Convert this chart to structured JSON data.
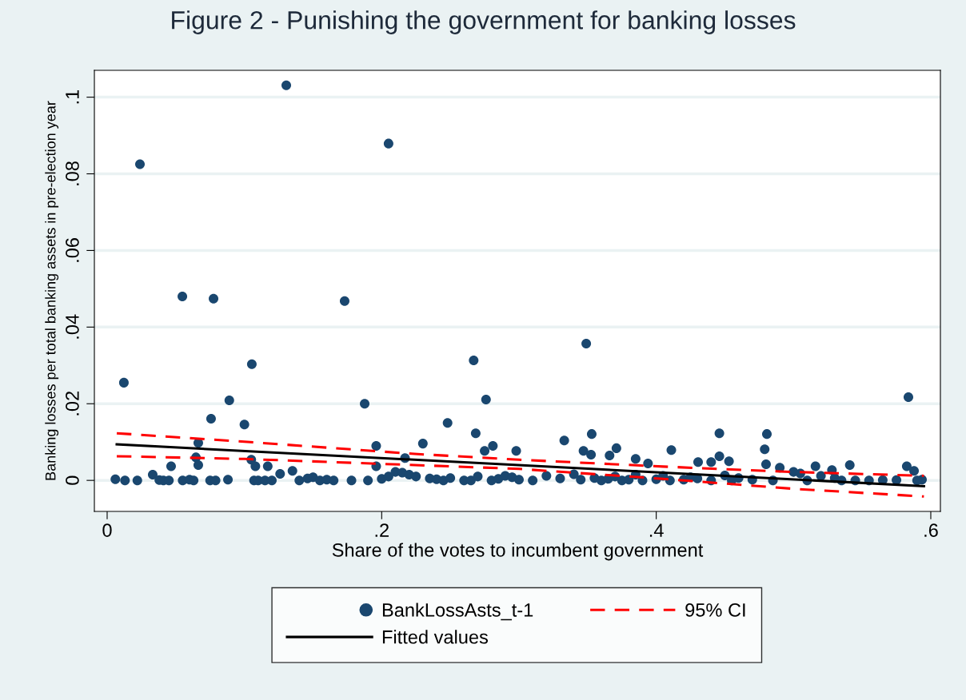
{
  "chart_data": {
    "type": "scatter",
    "title": "Figure 2 - Punishing the government for banking losses",
    "xlabel": "Share of the votes to incumbent government",
    "ylabel": "Banking losses per total banking assets in pre-election year",
    "xlim": [
      -0.0093,
      0.607
    ],
    "ylim": [
      -0.0081,
      0.107
    ],
    "xticks": [
      0,
      {
        "value": 0.2,
        "label": ".2"
      },
      {
        "value": 0.4,
        "label": ".4"
      },
      {
        "value": 0.6,
        "label": ".6"
      }
    ],
    "yticks": [
      0,
      {
        "value": 0.02,
        "label": ".02"
      },
      {
        "value": 0.04,
        "label": ".04"
      },
      {
        "value": 0.06,
        "label": ".06"
      },
      {
        "value": 0.08,
        "label": ".08"
      },
      {
        "value": 0.1,
        "label": ".1"
      }
    ],
    "grid": "y",
    "legend": "bottom",
    "series": [
      {
        "name": "BankLossAsts_t-1",
        "marker": "circle",
        "color": "#1a476f",
        "x": [
          0.1305,
          0.205,
          0.0239,
          0.0548,
          0.0775,
          0.173,
          0.349,
          0.0122,
          0.1054,
          0.267,
          0.276,
          0.089,
          0.1876,
          0.0757,
          0.1,
          0.248,
          0.5837,
          0.2685,
          0.353,
          0.23,
          0.275,
          0.281,
          0.298,
          0.333,
          0.347,
          0.3525,
          0.366,
          0.371,
          0.385,
          0.394,
          0.411,
          0.4305,
          0.44,
          0.446,
          0.446,
          0.453,
          0.479,
          0.4806,
          0.48,
          0.49,
          0.516,
          0.528,
          0.541,
          0.5825,
          0.5878,
          0.5936,
          0.0664,
          0.196,
          0.0647,
          0.0664,
          0.0466,
          0.0332,
          0.105,
          0.108,
          0.117,
          0.196,
          0.217,
          0.126,
          0.135,
          0.006,
          0.013,
          0.022,
          0.038,
          0.041,
          0.045,
          0.055,
          0.06,
          0.063,
          0.075,
          0.079,
          0.088,
          0.107,
          0.11,
          0.115,
          0.12,
          0.14,
          0.146,
          0.15,
          0.155,
          0.16,
          0.165,
          0.178,
          0.19,
          0.2,
          0.205,
          0.21,
          0.215,
          0.22,
          0.225,
          0.235,
          0.24,
          0.245,
          0.25,
          0.26,
          0.265,
          0.27,
          0.28,
          0.285,
          0.29,
          0.295,
          0.3,
          0.31,
          0.32,
          0.33,
          0.34,
          0.345,
          0.355,
          0.36,
          0.365,
          0.37,
          0.375,
          0.38,
          0.385,
          0.39,
          0.4,
          0.405,
          0.41,
          0.42,
          0.425,
          0.43,
          0.44,
          0.45,
          0.455,
          0.46,
          0.47,
          0.485,
          0.5,
          0.505,
          0.51,
          0.52,
          0.53,
          0.535,
          0.545,
          0.555,
          0.565,
          0.575,
          0.59
        ],
        "values": [
          0.1031,
          0.0879,
          0.0825,
          0.048,
          0.0474,
          0.0468,
          0.0357,
          0.0255,
          0.0303,
          0.0313,
          0.0211,
          0.0209,
          0.02,
          0.0161,
          0.0146,
          0.015,
          0.0217,
          0.0123,
          0.0121,
          0.0096,
          0.0077,
          0.009,
          0.0077,
          0.0104,
          0.0077,
          0.0067,
          0.0065,
          0.0084,
          0.0056,
          0.0044,
          0.0079,
          0.0048,
          0.0048,
          0.0123,
          0.0063,
          0.005,
          0.0081,
          0.0121,
          0.0042,
          0.0033,
          0.0037,
          0.0027,
          0.004,
          0.0037,
          0.0025,
          0.0002,
          0.0098,
          0.009,
          0.006,
          0.004,
          0.0037,
          0.0015,
          0.0054,
          0.0037,
          0.0037,
          0.0037,
          0.0058,
          0.0017,
          0.0025,
          0.0003,
          0,
          0,
          0.0001,
          0,
          0,
          0,
          0.0002,
          0,
          0,
          0,
          0.0002,
          0,
          0,
          0,
          0,
          0,
          0.0005,
          0.0008,
          0,
          0.0002,
          0,
          0,
          0,
          0.0004,
          0.001,
          0.0022,
          0.002,
          0.0015,
          0.001,
          0.0005,
          0.0003,
          0,
          0.0006,
          0,
          0,
          0.001,
          0,
          0.0004,
          0.0012,
          0.0008,
          0.0002,
          0,
          0.0012,
          0.0005,
          0.0016,
          0.0002,
          0.0006,
          0,
          0.0004,
          0.001,
          0,
          0.0002,
          0.0015,
          0,
          0.0003,
          0.0012,
          0,
          0.0002,
          0.0008,
          0.0005,
          0,
          0.0013,
          0,
          0.0006,
          0.0002,
          0,
          0.0022,
          0.0018,
          0,
          0.0012,
          0.0006,
          0,
          0,
          0,
          0.0001,
          0.0001,
          0
        ]
      },
      {
        "name": "Fitted values",
        "type": "line",
        "color": "#000000",
        "line_style": "solid",
        "x": [
          0.007,
          0.595
        ],
        "values": [
          0.0094,
          -0.0015
        ]
      },
      {
        "name": "95% CI",
        "type": "line",
        "color": "#ff0000",
        "line_style": "dashed",
        "x": [
          0.007,
          0.1,
          0.224,
          0.3,
          0.405,
          0.5,
          0.595
        ],
        "values": [
          0.0123,
          0.0101,
          0.0069,
          0.0054,
          0.0036,
          0.0022,
          0.0012
        ]
      },
      {
        "type": "line",
        "color": "#ff0000",
        "line_style": "dashed",
        "x": [
          0.007,
          0.1,
          0.224,
          0.3,
          0.405,
          0.5,
          0.595
        ],
        "values": [
          0.0063,
          0.0056,
          0.004,
          0.003,
          0.0004,
          -0.0022,
          -0.0042
        ]
      }
    ]
  }
}
